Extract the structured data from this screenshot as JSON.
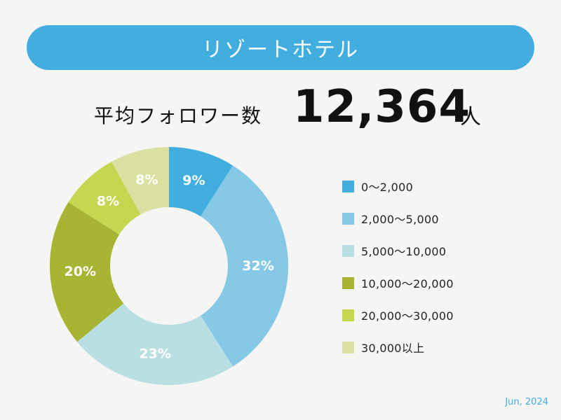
{
  "header": {
    "title": "リゾートホテル"
  },
  "summary": {
    "label": "平均フォロワー数",
    "value": "12,364",
    "unit": "人"
  },
  "footer": {
    "date": "Jun, 2024"
  },
  "chart_data": {
    "type": "pie",
    "donut": true,
    "categories": [
      "0〜2,000",
      "2,000〜5,000",
      "5,000〜10,000",
      "10,000〜20,000",
      "20,000〜30,000",
      "30,000以上"
    ],
    "values": [
      9,
      32,
      23,
      20,
      8,
      8
    ],
    "data_labels": [
      "9%",
      "32%",
      "23%",
      "20%",
      "8%",
      "8%"
    ],
    "colors": [
      "#41aedf",
      "#85c9e6",
      "#b9dfe3",
      "#a8b534",
      "#c5d650",
      "#d9e0a0"
    ],
    "legend_position": "right"
  }
}
